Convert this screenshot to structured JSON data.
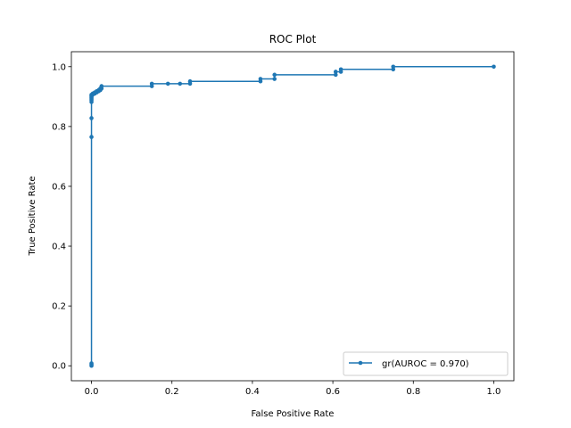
{
  "chart_data": {
    "type": "line",
    "title": "ROC Plot",
    "xlabel": "False Positive Rate",
    "ylabel": "True Positive Rate",
    "xlim": [
      -0.05,
      1.05
    ],
    "ylim": [
      -0.05,
      1.05
    ],
    "xticks": [
      "0.0",
      "0.2",
      "0.4",
      "0.6",
      "0.8",
      "1.0"
    ],
    "yticks": [
      "0.0",
      "0.2",
      "0.4",
      "0.6",
      "0.8",
      "1.0"
    ],
    "grid": false,
    "legend_position": "lower-right",
    "series": [
      {
        "name": "gr(AUROC = 0.970)",
        "color": "#1f77b4",
        "marker": "circle",
        "x": [
          0.0,
          0.0,
          0.0,
          0.0,
          0.0,
          0.0,
          0.0,
          0.0,
          0.0,
          0.0,
          0.0,
          0.0,
          0.003,
          0.003,
          0.008,
          0.008,
          0.013,
          0.013,
          0.018,
          0.018,
          0.022,
          0.022,
          0.025,
          0.025,
          0.15,
          0.15,
          0.19,
          0.22,
          0.245,
          0.245,
          0.42,
          0.42,
          0.455,
          0.455,
          0.607,
          0.607,
          0.62,
          0.62,
          0.75,
          0.75,
          1.0
        ],
        "y": [
          0.0,
          0.004,
          0.008,
          0.765,
          0.828,
          0.882,
          0.888,
          0.892,
          0.896,
          0.9,
          0.903,
          0.906,
          0.906,
          0.91,
          0.91,
          0.914,
          0.914,
          0.918,
          0.918,
          0.922,
          0.922,
          0.927,
          0.927,
          0.935,
          0.935,
          0.943,
          0.943,
          0.943,
          0.943,
          0.951,
          0.951,
          0.959,
          0.959,
          0.973,
          0.973,
          0.983,
          0.983,
          0.991,
          0.991,
          1.0,
          1.0
        ]
      }
    ]
  }
}
